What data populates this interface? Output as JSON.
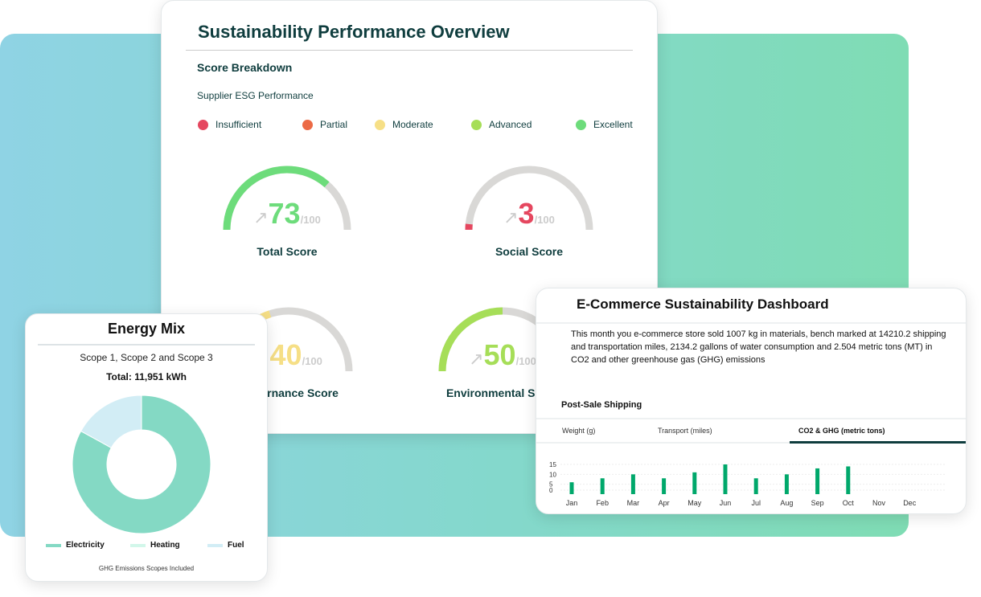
{
  "overview": {
    "title": "Sustainability Performance Overview",
    "section": "Score Breakdown",
    "subtitle": "Supplier ESG Performance",
    "legend": [
      {
        "label": "Insufficient",
        "color": "#e5475f"
      },
      {
        "label": "Partial",
        "color": "#ec6a45"
      },
      {
        "label": "Moderate",
        "color": "#f6df86"
      },
      {
        "label": "Advanced",
        "color": "#a6de58"
      },
      {
        "label": "Excellent",
        "color": "#6ddc7b"
      }
    ],
    "gauges": [
      {
        "label": "Total Score",
        "value": 73,
        "max": "/100",
        "color": "#6ddc7b",
        "arrow": "↗"
      },
      {
        "label": "Social Score",
        "value": 3,
        "max": "/100",
        "color": "#e5475f",
        "arrow": "↗"
      },
      {
        "label": "Governance Score",
        "value": 40,
        "max": "/100",
        "color": "#f6df86",
        "arrow": "↗"
      },
      {
        "label": "Environmental Score",
        "value": 50,
        "max": "/100",
        "color": "#a6de58",
        "arrow": "↗"
      }
    ]
  },
  "energy": {
    "title": "Energy Mix",
    "subtitle": "Scope 1, Scope 2 and Scope 3",
    "total": "Total: 11,951 kWh",
    "footer": "GHG Emissions Scopes Included",
    "chart_data": {
      "type": "pie",
      "categories": [
        "Electricity",
        "Heating",
        "Fuel"
      ],
      "values": [
        83,
        0,
        17
      ],
      "colors": [
        "#84d9c4",
        "#d2f7ea",
        "#d2edf5"
      ],
      "legend": "bottom"
    }
  },
  "ecommerce": {
    "title": "E-Commerce Sustainability Dashboard",
    "description": "This month you e-commerce store sold 1007 kg in materials, bench marked at 14210.2 shipping and transportation miles, 2134.2 gallons of water consumption and 2.504 metric tons (MT) in CO2 and other greenhouse gas (GHG) emissions",
    "section": "Post-Sale Shipping",
    "tabs": [
      "Weight (g)",
      "Transport (miles)",
      "CO2 & GHG (metric tons)"
    ],
    "active_tab": 2,
    "chart_data": {
      "type": "bar",
      "categories": [
        "Jan",
        "Feb",
        "Mar",
        "Apr",
        "May",
        "Jun",
        "Jul",
        "Aug",
        "Sep",
        "Oct",
        "Nov",
        "Dec"
      ],
      "values": [
        6,
        8,
        10,
        8,
        11,
        15,
        8,
        10,
        13,
        14,
        null,
        null
      ],
      "yticks": [
        "0",
        "5",
        "10",
        "15"
      ],
      "ylim": [
        0,
        15
      ],
      "color": "#00a86b",
      "grid": true
    }
  }
}
